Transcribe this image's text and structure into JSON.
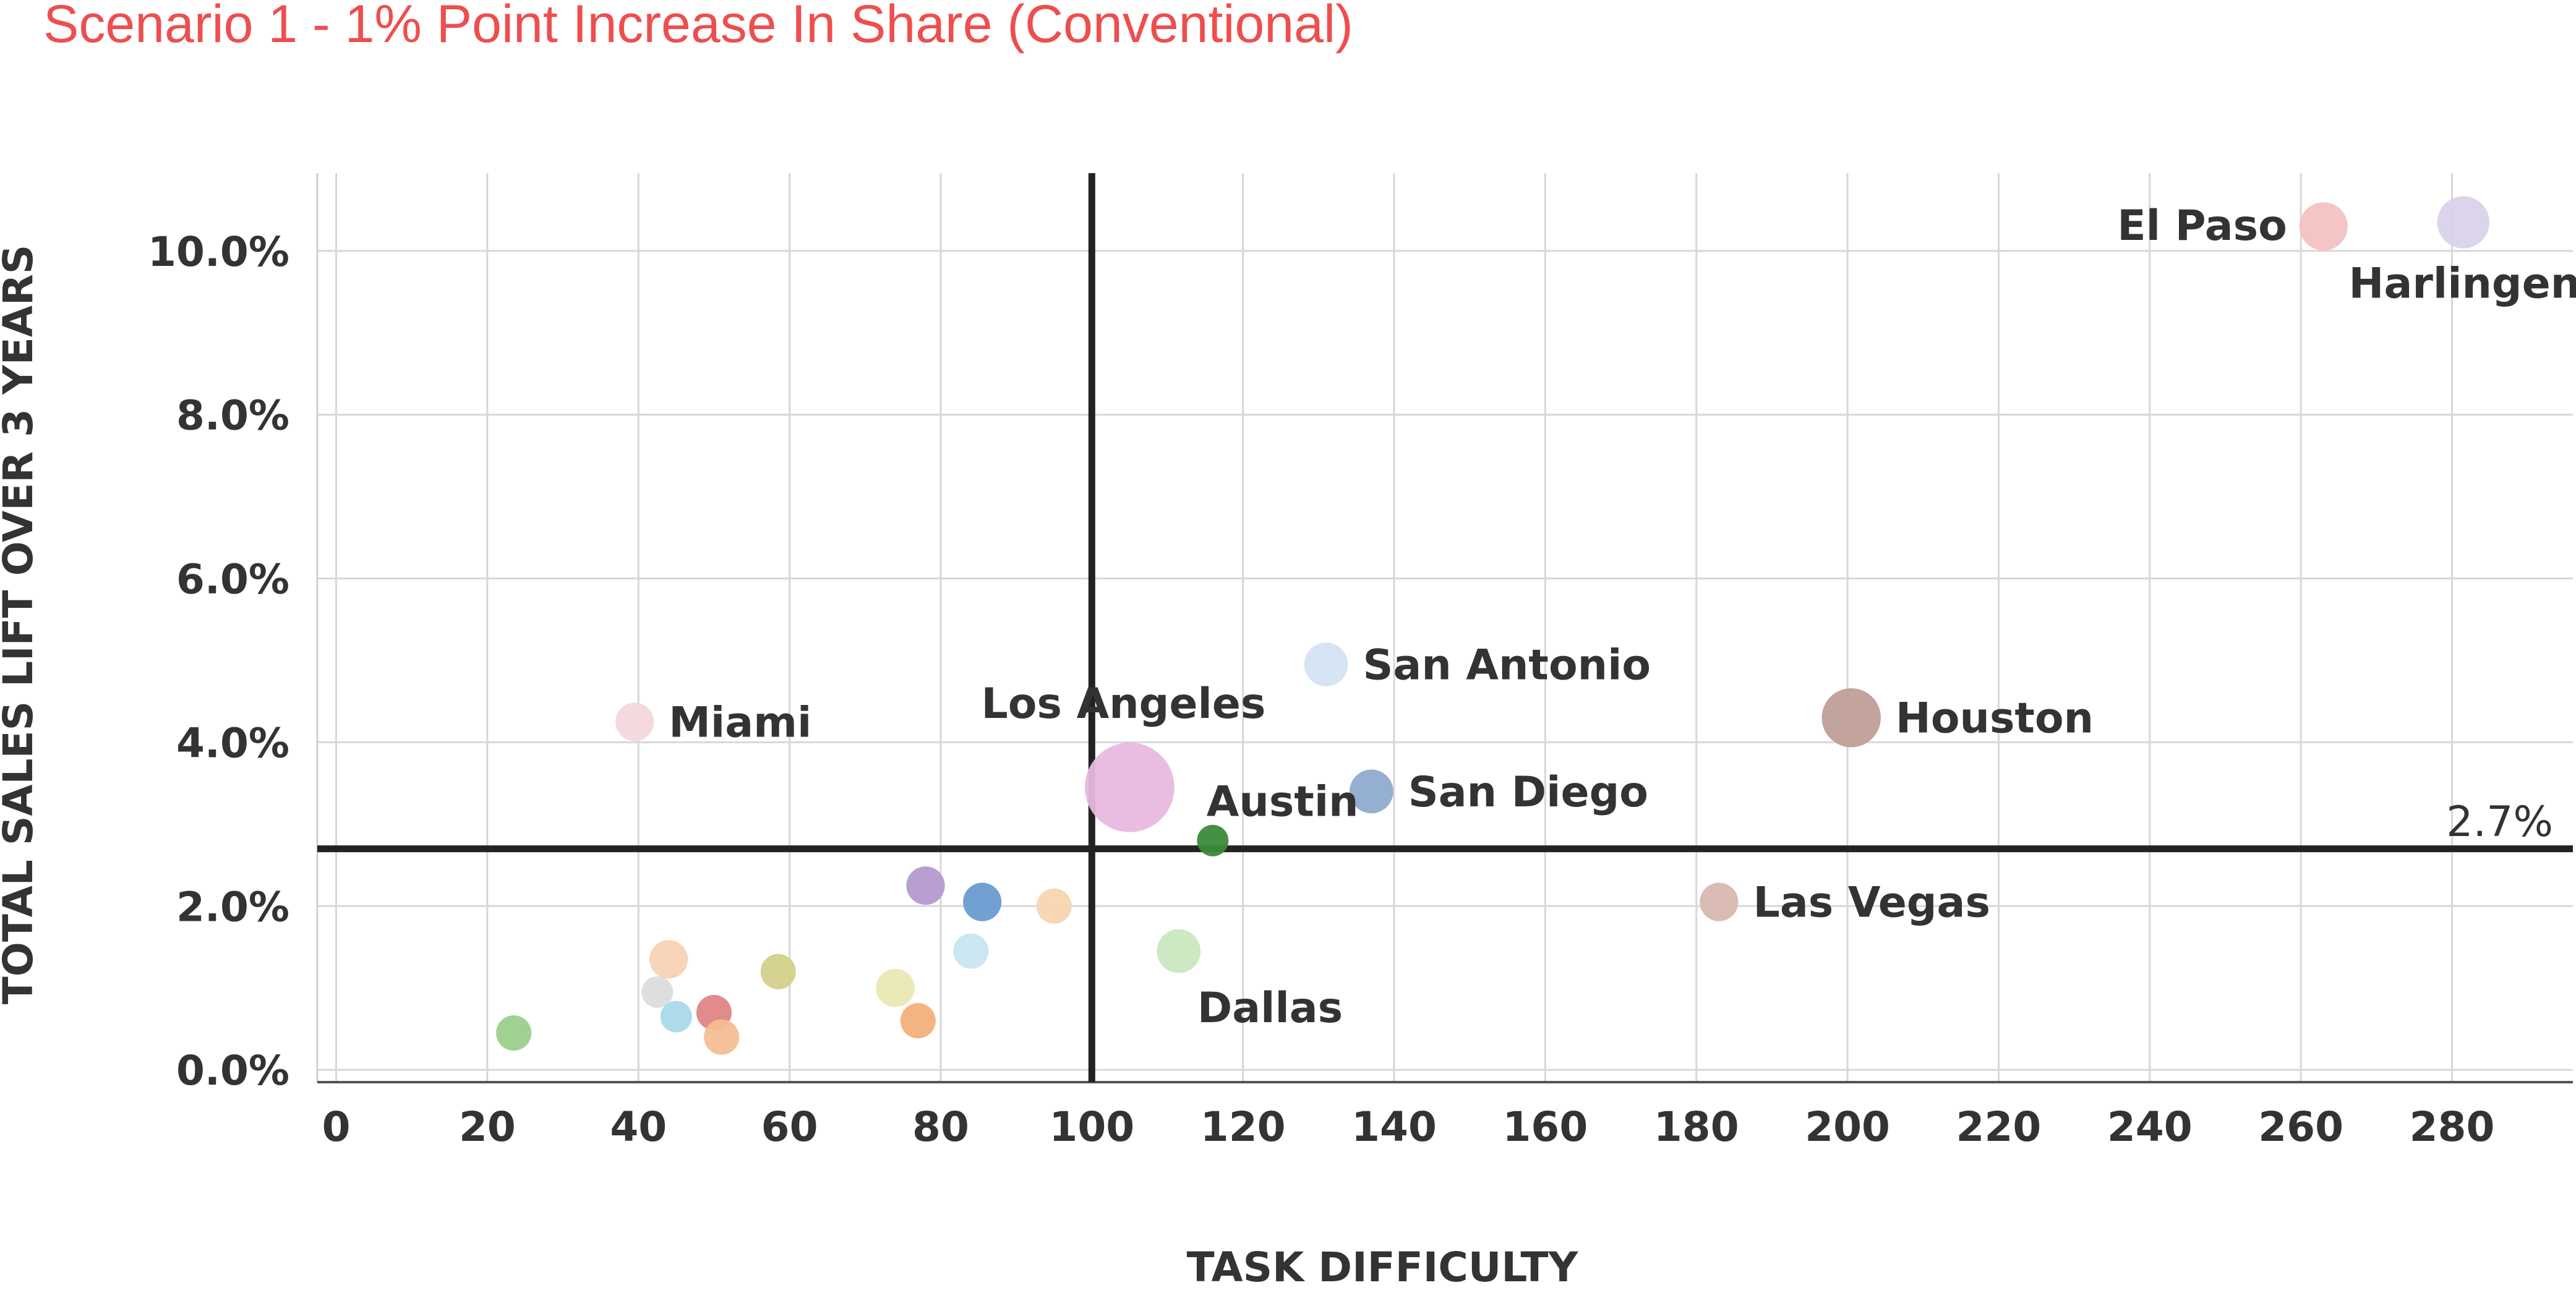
{
  "chart_data": {
    "type": "scatter",
    "title": "Scenario 1 - 1% Point Increase In Share (Conventional)",
    "xlabel": "TASK DIFFICULTY",
    "ylabel": "TOTAL SALES LIFT OVER 3 YEARS",
    "xlim": [
      -2.5,
      296
    ],
    "ylim": [
      -0.15,
      10.95
    ],
    "x_ticks": [
      0,
      20,
      40,
      60,
      80,
      100,
      120,
      140,
      160,
      180,
      200,
      220,
      240,
      260,
      280
    ],
    "x_tick_labels": [
      "0",
      "20",
      "40",
      "60",
      "80",
      "100",
      "120",
      "140",
      "160",
      "180",
      "200",
      "220",
      "240",
      "260",
      "280"
    ],
    "y_ticks": [
      0,
      2,
      4,
      6,
      8,
      10
    ],
    "y_tick_labels": [
      "0.0%",
      "2.0%",
      "4.0%",
      "6.0%",
      "8.0%",
      "10.0%"
    ],
    "grid": true,
    "reference_lines": {
      "x": 100,
      "y": 2.7,
      "y_label": "2.7%"
    },
    "points": [
      {
        "label": "El Paso",
        "x": 263,
        "y": 10.3,
        "size": 4,
        "color": "#f4c2c2",
        "label_pos": "left"
      },
      {
        "label": "Harlingen",
        "x": 281.5,
        "y": 10.35,
        "size": 5,
        "color": "#d9d2e9",
        "label_pos": "below"
      },
      {
        "label": "San Antonio",
        "x": 131,
        "y": 4.95,
        "size": 3,
        "color": "#d5e3f3",
        "label_pos": "right"
      },
      {
        "label": "Miami",
        "x": 39.5,
        "y": 4.25,
        "size": 2,
        "color": "#f3d7dc",
        "label_pos": "right"
      },
      {
        "label": "Los Angeles",
        "x": 105,
        "y": 3.45,
        "size": 20,
        "color": "#e8b9dd",
        "label_pos": "above"
      },
      {
        "label": "Houston",
        "x": 200.5,
        "y": 4.3,
        "size": 7,
        "color": "#bf9f97",
        "label_pos": "right"
      },
      {
        "label": "Austin",
        "x": 116,
        "y": 2.8,
        "size": 1,
        "color": "#3a8a3a",
        "label_pos": "above-right"
      },
      {
        "label": "San Diego",
        "x": 137,
        "y": 3.4,
        "size": 3,
        "color": "#8fabd0",
        "label_pos": "right"
      },
      {
        "label": "Las Vegas",
        "x": 183,
        "y": 2.05,
        "size": 2,
        "color": "#d8b8b0",
        "label_pos": "right"
      },
      {
        "label": "Dallas",
        "x": 111.5,
        "y": 1.45,
        "size": 3,
        "color": "#c9e8c0",
        "label_pos": "below-right"
      },
      {
        "label": "",
        "x": 78,
        "y": 2.25,
        "size": 2,
        "color": "#b599cf",
        "label_pos": "none"
      },
      {
        "label": "",
        "x": 85.5,
        "y": 2.05,
        "size": 2,
        "color": "#6b9bd1",
        "label_pos": "none"
      },
      {
        "label": "",
        "x": 95,
        "y": 2.0,
        "size": 1.5,
        "color": "#f7d5b0",
        "label_pos": "none"
      },
      {
        "label": "",
        "x": 84,
        "y": 1.45,
        "size": 1.5,
        "color": "#c8e6f0",
        "label_pos": "none"
      },
      {
        "label": "",
        "x": 44,
        "y": 1.35,
        "size": 2,
        "color": "#f8d2b5",
        "label_pos": "none"
      },
      {
        "label": "",
        "x": 58.5,
        "y": 1.2,
        "size": 1.5,
        "color": "#d4d08a",
        "label_pos": "none"
      },
      {
        "label": "",
        "x": 74,
        "y": 1.0,
        "size": 2,
        "color": "#ebe8b5",
        "label_pos": "none"
      },
      {
        "label": "",
        "x": 42.5,
        "y": 0.95,
        "size": 1,
        "color": "#dcdcdc",
        "label_pos": "none"
      },
      {
        "label": "",
        "x": 50,
        "y": 0.7,
        "size": 1.5,
        "color": "#e08585",
        "label_pos": "none"
      },
      {
        "label": "",
        "x": 45,
        "y": 0.65,
        "size": 1,
        "color": "#a9d9e8",
        "label_pos": "none"
      },
      {
        "label": "",
        "x": 77,
        "y": 0.6,
        "size": 1.5,
        "color": "#f3b07a",
        "label_pos": "none"
      },
      {
        "label": "",
        "x": 23.5,
        "y": 0.45,
        "size": 1.5,
        "color": "#9ccf8a",
        "label_pos": "none"
      },
      {
        "label": "",
        "x": 51,
        "y": 0.4,
        "size": 1.5,
        "color": "#f5bd95",
        "label_pos": "none"
      }
    ],
    "colors": {
      "title": "#ee4e4e",
      "axis_text": "#333333",
      "grid": "#d7d7d7",
      "reference_line": "#222222"
    }
  }
}
